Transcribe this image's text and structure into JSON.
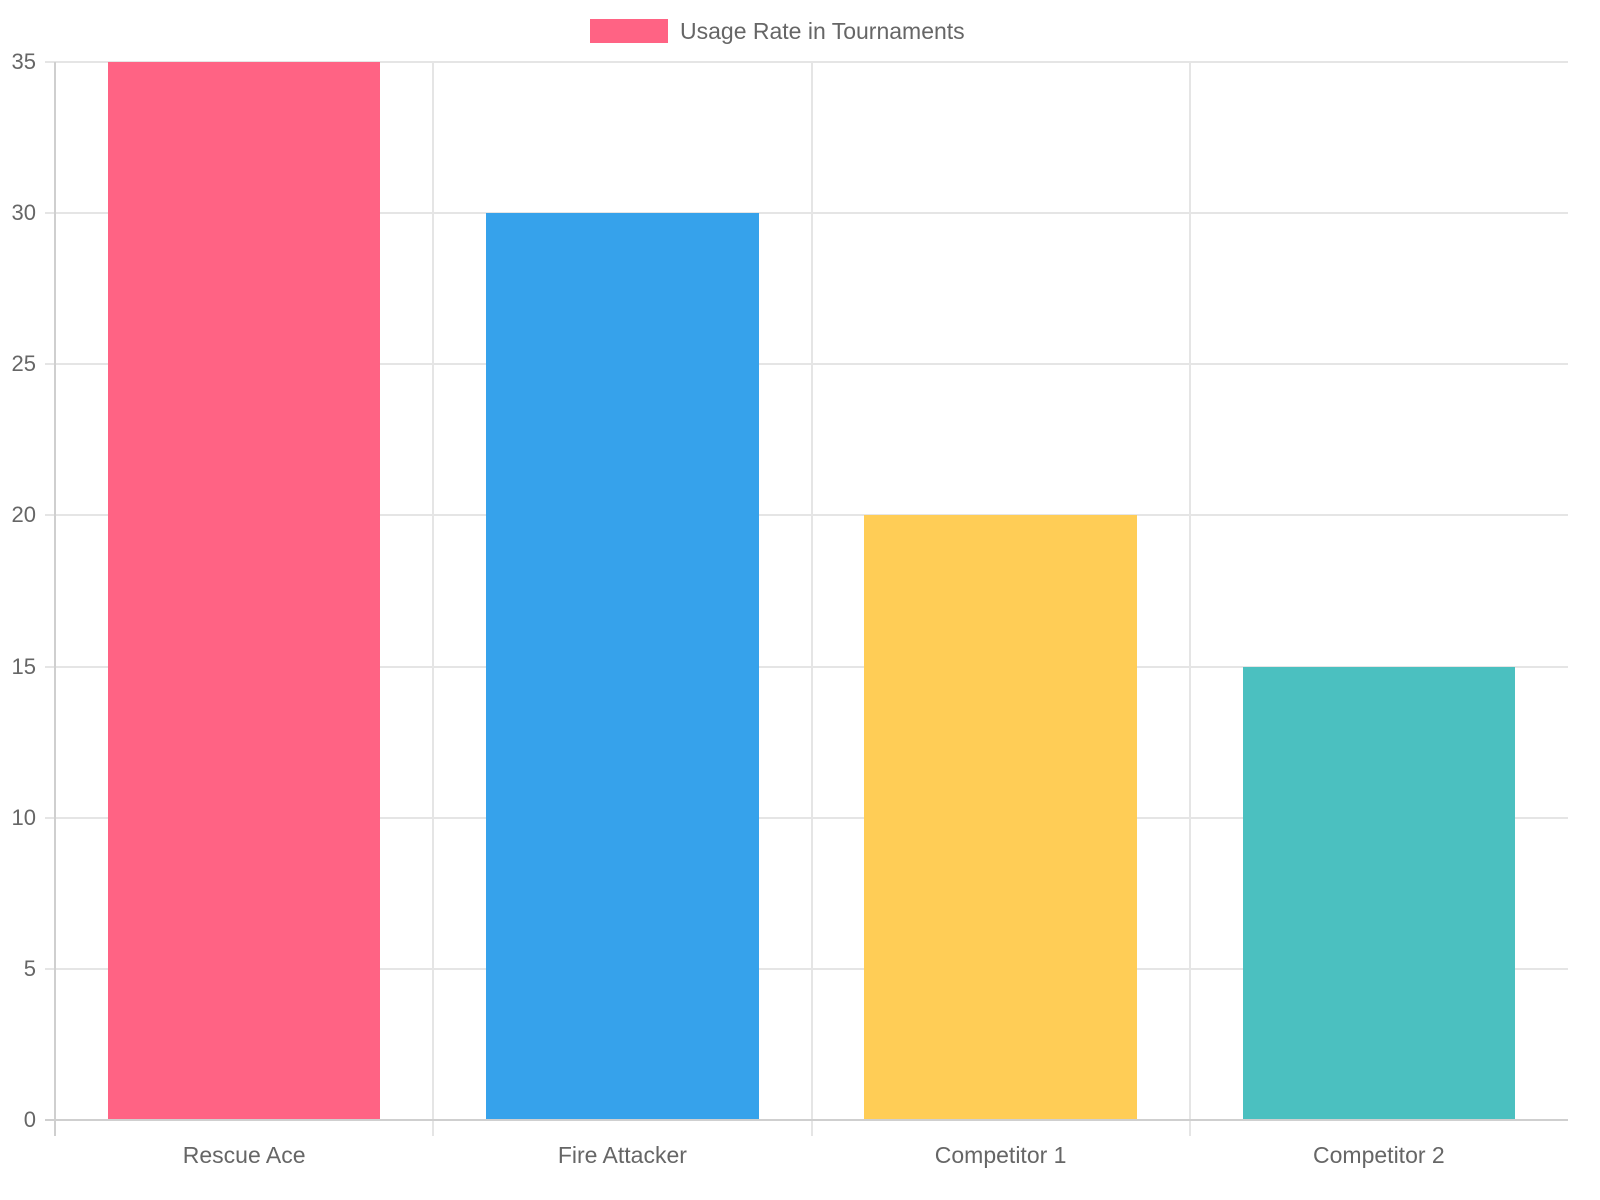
{
  "chart_data": {
    "type": "bar",
    "title": "",
    "categories": [
      "Rescue Ace",
      "Fire Attacker",
      "Competitor 1",
      "Competitor 2"
    ],
    "series": [
      {
        "name": "Usage Rate in Tournaments",
        "values": [
          35,
          30,
          20,
          15
        ],
        "colors": [
          "#ff6384",
          "#36a2eb",
          "#ffcd56",
          "#4bc0c0"
        ]
      }
    ],
    "xlabel": "",
    "ylabel": "",
    "ylim": [
      0,
      35
    ],
    "yticks": [
      0,
      5,
      10,
      15,
      20,
      25,
      30,
      35
    ],
    "grid": true,
    "legend_position": "top"
  },
  "legend": {
    "label": "Usage Rate in Tournaments",
    "color": "#ff6384"
  }
}
